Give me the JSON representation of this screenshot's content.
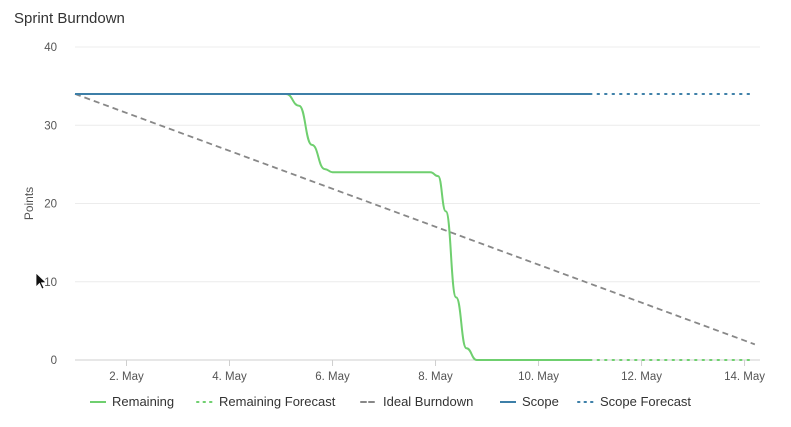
{
  "chart_data": {
    "type": "line",
    "title": "Sprint Burndown",
    "ylabel": "Points",
    "xlabel": "",
    "ylim": [
      0,
      40
    ],
    "xlim": [
      1,
      14.3
    ],
    "y_ticks": [
      "0",
      "10",
      "20",
      "30",
      "40"
    ],
    "x_ticks": [
      {
        "x": 2,
        "label": "2. May"
      },
      {
        "x": 4,
        "label": "4. May"
      },
      {
        "x": 6,
        "label": "6. May"
      },
      {
        "x": 8,
        "label": "8. May"
      },
      {
        "x": 10,
        "label": "10. May"
      },
      {
        "x": 12,
        "label": "12. May"
      },
      {
        "x": 14,
        "label": "14. May"
      }
    ],
    "series": [
      {
        "name": "Remaining",
        "color": "#6fcf6f",
        "style": "solid",
        "points": [
          [
            1,
            34
          ],
          [
            5.1,
            34
          ],
          [
            5.35,
            32.5
          ],
          [
            5.6,
            27.5
          ],
          [
            5.85,
            24.4
          ],
          [
            6,
            24
          ],
          [
            7.9,
            24
          ],
          [
            8.05,
            23.5
          ],
          [
            8.2,
            19
          ],
          [
            8.4,
            8
          ],
          [
            8.6,
            1.5
          ],
          [
            8.8,
            0
          ],
          [
            11,
            0
          ]
        ]
      },
      {
        "name": "Remaining Forecast",
        "color": "#6fcf6f",
        "style": "dotted",
        "points": [
          [
            11,
            0
          ],
          [
            14.2,
            0
          ]
        ]
      },
      {
        "name": "Ideal Burndown",
        "color": "#888888",
        "style": "dashed",
        "points": [
          [
            1,
            34
          ],
          [
            14.2,
            2
          ]
        ]
      },
      {
        "name": "Scope",
        "color": "#3d7fa8",
        "style": "solid",
        "points": [
          [
            1,
            34
          ],
          [
            11,
            34
          ]
        ]
      },
      {
        "name": "Scope Forecast",
        "color": "#3d7fa8",
        "style": "dotted",
        "points": [
          [
            11,
            34
          ],
          [
            14.2,
            34
          ]
        ]
      }
    ],
    "legend": "bottom"
  }
}
